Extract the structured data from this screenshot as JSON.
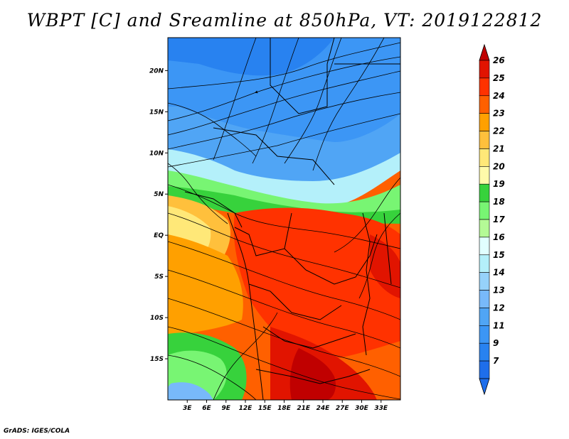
{
  "title": "WBPT [C] and Sreamline at 850hPa, VT: 2019122812",
  "credit": "GrADS: IGES/COLA",
  "map": {
    "lon_range": [
      0,
      36
    ],
    "lat_range": [
      -20,
      24
    ],
    "lat_ticks": [
      {
        "value": 20,
        "label": "20N"
      },
      {
        "value": 15,
        "label": "15N"
      },
      {
        "value": 10,
        "label": "10N"
      },
      {
        "value": 5,
        "label": "5N"
      },
      {
        "value": 0,
        "label": "EQ"
      },
      {
        "value": -5,
        "label": "5S"
      },
      {
        "value": -10,
        "label": "10S"
      },
      {
        "value": -15,
        "label": "15S"
      }
    ],
    "lon_ticks": [
      {
        "value": 3,
        "label": "3E"
      },
      {
        "value": 6,
        "label": "6E"
      },
      {
        "value": 9,
        "label": "9E"
      },
      {
        "value": 12,
        "label": "12E"
      },
      {
        "value": 15,
        "label": "15E"
      },
      {
        "value": 18,
        "label": "18E"
      },
      {
        "value": 21,
        "label": "21E"
      },
      {
        "value": 24,
        "label": "24E"
      },
      {
        "value": 27,
        "label": "27E"
      },
      {
        "value": 30,
        "label": "30E"
      },
      {
        "value": 33,
        "label": "33E"
      }
    ]
  },
  "colorbar": {
    "levels": [
      {
        "label": "7",
        "color": "#1e6eeb"
      },
      {
        "label": "9",
        "color": "#2882f0"
      },
      {
        "label": "11",
        "color": "#3c96f5"
      },
      {
        "label": "12",
        "color": "#50a5f5"
      },
      {
        "label": "13",
        "color": "#78b9fa"
      },
      {
        "label": "14",
        "color": "#96d2fa"
      },
      {
        "label": "15",
        "color": "#b4f0fa"
      },
      {
        "label": "16",
        "color": "#e1ffff"
      },
      {
        "label": "17",
        "color": "#b4fa96"
      },
      {
        "label": "18",
        "color": "#78f573"
      },
      {
        "label": "19",
        "color": "#37d23c"
      },
      {
        "label": "20",
        "color": "#fffaaa"
      },
      {
        "label": "21",
        "color": "#ffe878"
      },
      {
        "label": "22",
        "color": "#ffc03c"
      },
      {
        "label": "23",
        "color": "#ffa000"
      },
      {
        "label": "24",
        "color": "#ff6000"
      },
      {
        "label": "25",
        "color": "#ff3200"
      },
      {
        "label": "26",
        "color": "#e11400"
      }
    ],
    "overflow_low_color": "#1e6eeb",
    "overflow_high_color": "#c00000"
  }
}
